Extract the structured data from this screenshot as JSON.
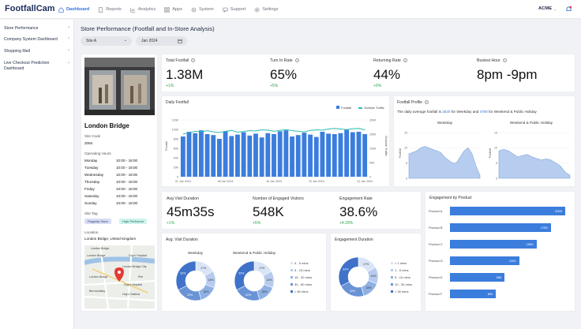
{
  "app": {
    "logo": "FootfallCam",
    "account": "ACME"
  },
  "nav": [
    {
      "label": "Dashboard",
      "icon": "home-icon",
      "active": true
    },
    {
      "label": "Reports",
      "icon": "document-icon"
    },
    {
      "label": "Analytics",
      "icon": "chart-icon"
    },
    {
      "label": "Apps",
      "icon": "grid-icon"
    },
    {
      "label": "System",
      "icon": "gear-icon"
    },
    {
      "label": "Support",
      "icon": "chat-icon"
    },
    {
      "label": "Settings",
      "icon": "settings-icon"
    }
  ],
  "sidebar": [
    "Store Performance",
    "Company System Dashboard",
    "Shopping Mall",
    "Live Checkout Prediction Dashboard"
  ],
  "page": {
    "title": "Store Performance (Footfall and In-Store Analysis)",
    "site_filter": "Site A",
    "date_filter": "Jan 2024"
  },
  "kpis": [
    {
      "label": "Total Footfall",
      "value": "1.38M",
      "delta": "+1%"
    },
    {
      "label": "Turn In Rate",
      "value": "65%",
      "delta": "+5%"
    },
    {
      "label": "Returning Rate",
      "value": "44%",
      "delta": "+9%"
    },
    {
      "label": "Busiest Hour",
      "value": "8pm -9pm",
      "delta": ""
    }
  ],
  "store": {
    "name": "London Bridge",
    "site_code_label": "Site Code",
    "site_code": "2084",
    "hours_label": "Operating Hours",
    "hours": [
      {
        "day": "Monday",
        "time": "10:00 - 18:00"
      },
      {
        "day": "Tuesday",
        "time": "10:00 - 18:00"
      },
      {
        "day": "Wednesday",
        "time": "10:00 - 18:00"
      },
      {
        "day": "Thursday",
        "time": "10:00 - 18:00"
      },
      {
        "day": "Friday",
        "time": "10:00 - 18:00"
      },
      {
        "day": "Saturday",
        "time": "10:00 - 18:00"
      },
      {
        "day": "Sunday",
        "time": "10:00 - 18:00"
      }
    ],
    "tag_label": "Site Tag",
    "tags": [
      "Flagship Store",
      "High Performer"
    ],
    "location_label": "Location",
    "location": "London Bridge, United Kingdom",
    "map_labels": [
      "London Bridge",
      "London Bridge",
      "Guy's Hospital",
      "London Bridge City",
      "London Bridge",
      "Pier",
      "Guy's Hospital",
      "Bermondsey",
      "Hay's Galleria"
    ]
  },
  "daily_footfall": {
    "title": "Daily Footfall",
    "legend": [
      "Footfall",
      "Outside Traffic"
    ],
    "ylabel": "Footall",
    "y2label": "Outside Traffic",
    "yticks": [
      "0",
      "20K",
      "40K",
      "60K",
      "80K",
      "100K",
      "120K"
    ],
    "y2ticks": [
      "0",
      "50K",
      "100K",
      "150K",
      "200K"
    ],
    "xticks": [
      "01 Jan 2024",
      "08 Jan 2024",
      "16 Jan 2024",
      "23 Jan 2024",
      "31 Jan 2024"
    ]
  },
  "footfall_profile": {
    "title": "Footfall Profile",
    "desc_pre": "The daily average footfall is ",
    "weekday_avg": "2520",
    "desc_mid": " for Weekday and ",
    "weekend_avg": "4700",
    "desc_post": " for Weekend & Public Holiday",
    "weekday_title": "Weekday",
    "weekend_title": "Weekend & Public Holiday",
    "weekday_ylabel": "Footfall",
    "weekend_ylabel": "Footfall",
    "yticks": [
      "0",
      "5",
      "10",
      "15"
    ]
  },
  "kpis2": [
    {
      "label": "Avg Visit Duration",
      "value": "45m35s",
      "delta": "+1%"
    },
    {
      "label": "Number of Engaged Visitors",
      "value": "548K",
      "delta": "+5%"
    },
    {
      "label": "Engagement Rate",
      "value": "38.6%",
      "delta": "+4.29%"
    }
  ],
  "avg_visit": {
    "title": "Avg. Visit Duration",
    "weekday_title": "Weekday",
    "weekend_title": "Weekend & Public Holiday",
    "legend": [
      "0 - 5 mins",
      "5 - 15 mins",
      "15 - 30 mins",
      "30 - 60 mins",
      "> 60 mins"
    ],
    "weekday_labels": [
      "17%",
      "14%",
      "15%",
      "22%",
      "33%"
    ],
    "weekend_labels": [
      "17%",
      "14%",
      "15%",
      "22%",
      "33%"
    ]
  },
  "engagement_duration": {
    "title": "Engagement Duration",
    "legend": [
      "< 1 mins",
      "1 - 5 mins",
      "5 - 10 mins",
      "10 - 30 mins",
      "> 30 mins"
    ],
    "labels": [
      "17%",
      "14%",
      "15%",
      "22%",
      "33%"
    ]
  },
  "engagement_product": {
    "title": "Engagement by Product",
    "products": [
      "Product A",
      "Product B",
      "Product C",
      "Product D",
      "Product E",
      "Product F"
    ],
    "values": [
      "2000",
      "1750",
      "1500",
      "1200",
      "950",
      "800"
    ]
  },
  "colors": {
    "accent": "#2f6fe0",
    "bar": "#3b7ddd",
    "line": "#2bbfae",
    "area": "#b7cdef"
  },
  "chart_data": [
    {
      "type": "bar",
      "title": "Daily Footfall",
      "series": [
        {
          "name": "Footfall",
          "values": [
            85000,
            95000,
            92000,
            98000,
            90000,
            88000,
            80000,
            96000,
            86000,
            89000,
            94000,
            87000,
            91000,
            83000,
            92000,
            90000,
            96000,
            98000,
            85000,
            88000,
            93000,
            89000,
            84000,
            95000,
            91000,
            90000,
            92000,
            99000,
            94000,
            95000,
            90000
          ]
        },
        {
          "name": "Outside Traffic",
          "values": [
            150000,
            155000,
            160000,
            158000,
            162000,
            158000,
            156000,
            160000,
            163000,
            157000,
            159000,
            162000,
            161000,
            165000,
            164000,
            160000,
            163000,
            166000,
            162000,
            160000,
            158000,
            163000,
            165000,
            164000,
            168000,
            170000,
            168000,
            166000,
            169000,
            170000,
            165000
          ]
        }
      ],
      "ylim": [
        0,
        120000
      ]
    },
    {
      "type": "area",
      "title": "Weekday",
      "values": [
        8,
        8.5,
        9,
        10,
        10.5,
        10,
        9.5,
        9,
        8.5,
        7,
        6,
        5,
        5,
        7,
        9,
        10,
        8,
        4,
        1
      ]
    },
    {
      "type": "area",
      "title": "Weekend & Public Holiday",
      "values": [
        9,
        9.5,
        9,
        8,
        7,
        7.5,
        7.8,
        7,
        6.5,
        6,
        6.4,
        6,
        5,
        4,
        2,
        1
      ]
    },
    {
      "type": "pie",
      "title": "Weekday",
      "values": [
        17,
        14,
        15,
        22,
        33
      ]
    },
    {
      "type": "pie",
      "title": "Weekend & Public Holiday",
      "values": [
        17,
        14,
        15,
        22,
        33
      ]
    },
    {
      "type": "pie",
      "title": "Engagement Duration",
      "values": [
        17,
        14,
        15,
        22,
        33
      ]
    },
    {
      "type": "bar",
      "title": "Engagement by Product",
      "categories": [
        "Product A",
        "Product B",
        "Product C",
        "Product D",
        "Product E",
        "Product F"
      ],
      "values": [
        2000,
        1750,
        1500,
        1200,
        950,
        800
      ]
    }
  ]
}
